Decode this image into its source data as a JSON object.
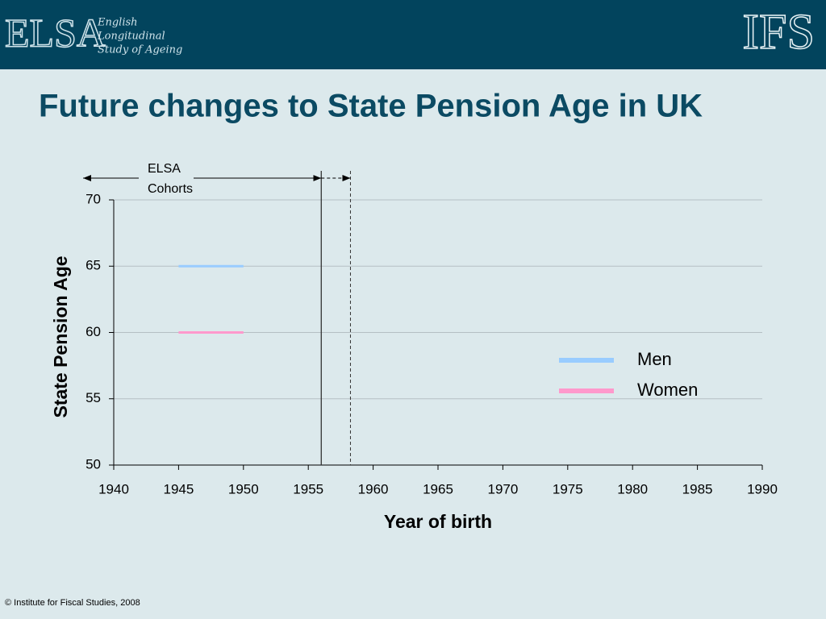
{
  "header": {
    "logo": "ELSA",
    "logo_lines": [
      "English",
      "Longitudinal",
      "Study of Ageing"
    ],
    "right_logo": "IFS"
  },
  "footer": "© Institute for Fiscal Studies, 2008",
  "chart_data": {
    "type": "line",
    "title": "Future changes to State Pension Age in UK",
    "x_label": "Year of birth",
    "y_label": "State Pension Age",
    "x": [
      1945,
      1950
    ],
    "series": [
      {
        "name": "Men",
        "color": "#99ccff",
        "values": [
          65,
          65
        ]
      },
      {
        "name": "Women",
        "color": "#ff99cc",
        "values": [
          60,
          60
        ]
      }
    ],
    "xlim": [
      1940,
      1990
    ],
    "xticks": [
      1940,
      1945,
      1950,
      1955,
      1960,
      1965,
      1970,
      1975,
      1980,
      1985,
      1990
    ],
    "ylim": [
      50,
      70
    ],
    "yticks": [
      50,
      55,
      60,
      65,
      70
    ],
    "grid": true,
    "legend": "right",
    "annotation": {
      "lines": [
        "ELSA",
        "Cohorts"
      ],
      "x_solid": 1956,
      "x_dashed": 1958.25
    }
  }
}
